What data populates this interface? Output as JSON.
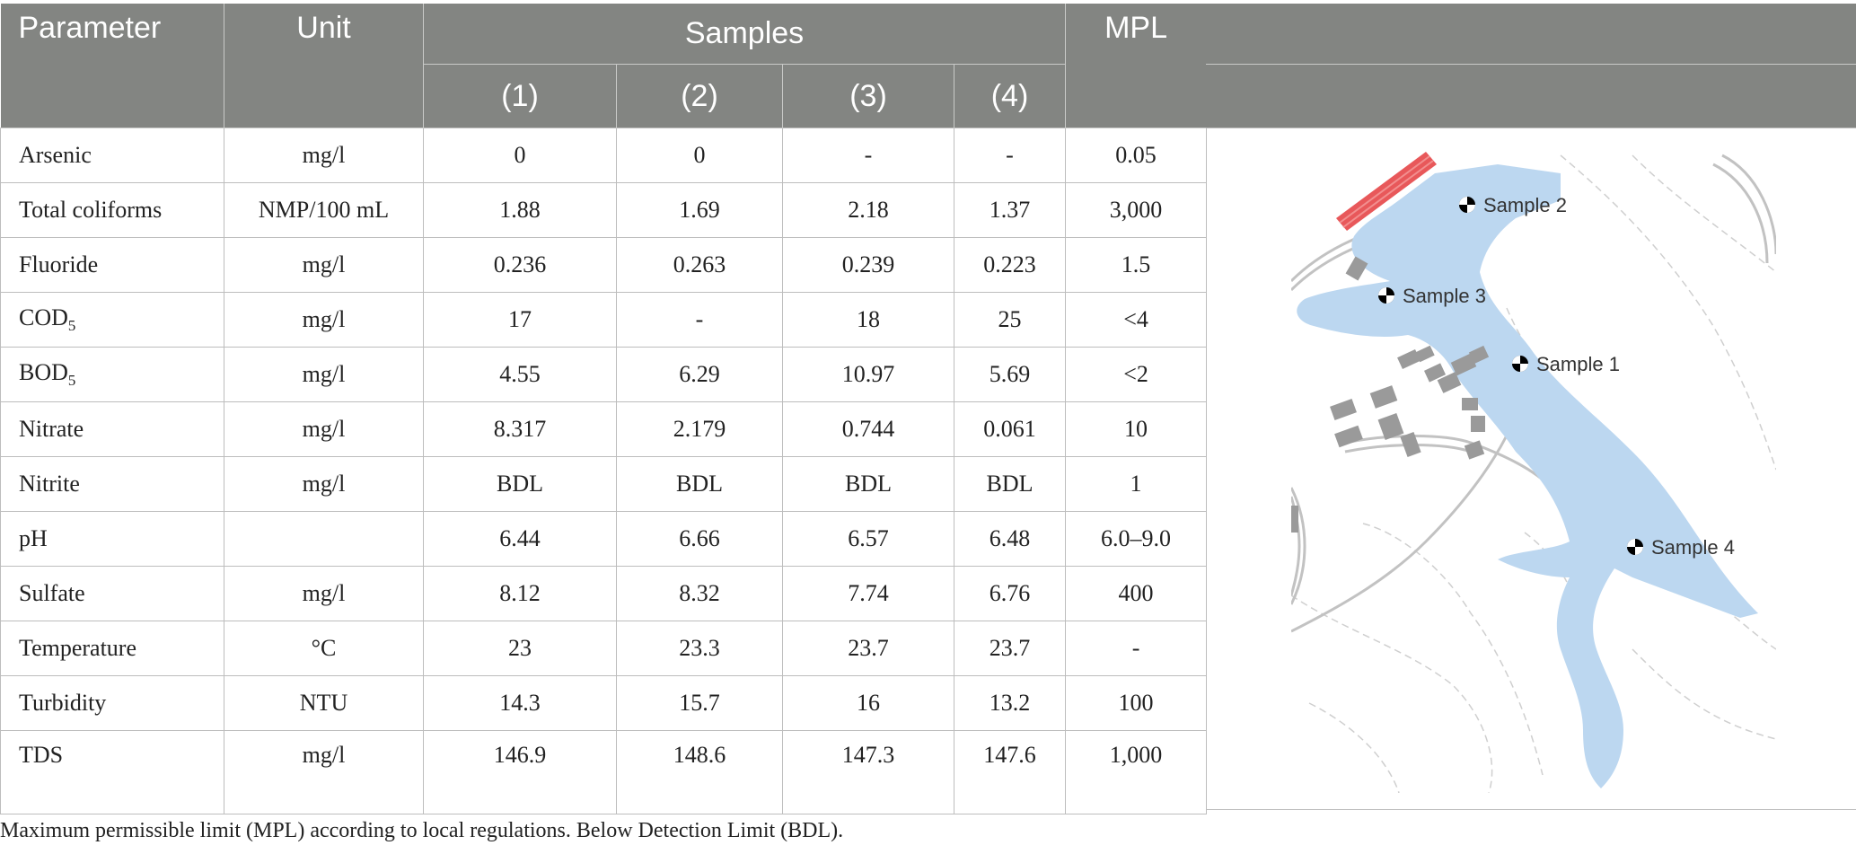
{
  "table": {
    "headers": {
      "parameter": "Parameter",
      "unit": "Unit",
      "samples": "Samples",
      "mpl": "MPL",
      "sample_cols": [
        "(1)",
        "(2)",
        "(3)",
        "(4)"
      ]
    },
    "rows": [
      {
        "param": "Arsenic",
        "unit": "mg/l",
        "s1": "0",
        "s2": "0",
        "s3": "-",
        "s4": "-",
        "mpl": "0.05"
      },
      {
        "param": "Total coliforms",
        "unit": "NMP/100 mL",
        "s1": "1.88",
        "s2": "1.69",
        "s3": "2.18",
        "s4": "1.37",
        "mpl": "3,000"
      },
      {
        "param": "Fluoride",
        "unit": "mg/l",
        "s1": "0.236",
        "s2": "0.263",
        "s3": "0.239",
        "s4": "0.223",
        "mpl": "1.5"
      },
      {
        "param": "COD",
        "param_sub": "5",
        "unit": "mg/l",
        "s1": "17",
        "s2": "-",
        "s3": "18",
        "s4": "25",
        "mpl": "<4"
      },
      {
        "param": "BOD",
        "param_sub": "5",
        "unit": "mg/l",
        "s1": "4.55",
        "s2": "6.29",
        "s3": "10.97",
        "s4": "5.69",
        "mpl": "<2"
      },
      {
        "param": "Nitrate",
        "unit": "mg/l",
        "s1": "8.317",
        "s2": "2.179",
        "s3": "0.744",
        "s4": "0.061",
        "mpl": "10"
      },
      {
        "param": "Nitrite",
        "unit": "mg/l",
        "s1": "BDL",
        "s2": "BDL",
        "s3": "BDL",
        "s4": "BDL",
        "mpl": "1"
      },
      {
        "param": "pH",
        "unit": "",
        "s1": "6.44",
        "s2": "6.66",
        "s3": "6.57",
        "s4": "6.48",
        "mpl": "6.0–9.0"
      },
      {
        "param": "Sulfate",
        "unit": "mg/l",
        "s1": "8.12",
        "s2": "8.32",
        "s3": "7.74",
        "s4": "6.76",
        "mpl": "400"
      },
      {
        "param": "Temperature",
        "unit": "°C",
        "s1": "23",
        "s2": "23.3",
        "s3": "23.7",
        "s4": "23.7",
        "mpl": "-"
      },
      {
        "param": "Turbidity",
        "unit": "NTU",
        "s1": "14.3",
        "s2": "15.7",
        "s3": "16",
        "s4": "13.2",
        "mpl": "100"
      },
      {
        "param": "TDS",
        "unit": "mg/l",
        "s1": "146.9",
        "s2": "148.6",
        "s3": "147.3",
        "s4": "147.6",
        "mpl": "1,000"
      }
    ]
  },
  "map": {
    "labels": [
      "Sample 2",
      "Sample 3",
      "Sample 1",
      "Sample 4"
    ],
    "colors": {
      "water": "#bcd7f0",
      "dam": "#e8585a",
      "buildings": "#9a9a9a",
      "roads": "#b8b8b8"
    }
  },
  "caption": "Maximum permissible limit (MPL) according to local regulations. Below Detection Limit (BDL)."
}
